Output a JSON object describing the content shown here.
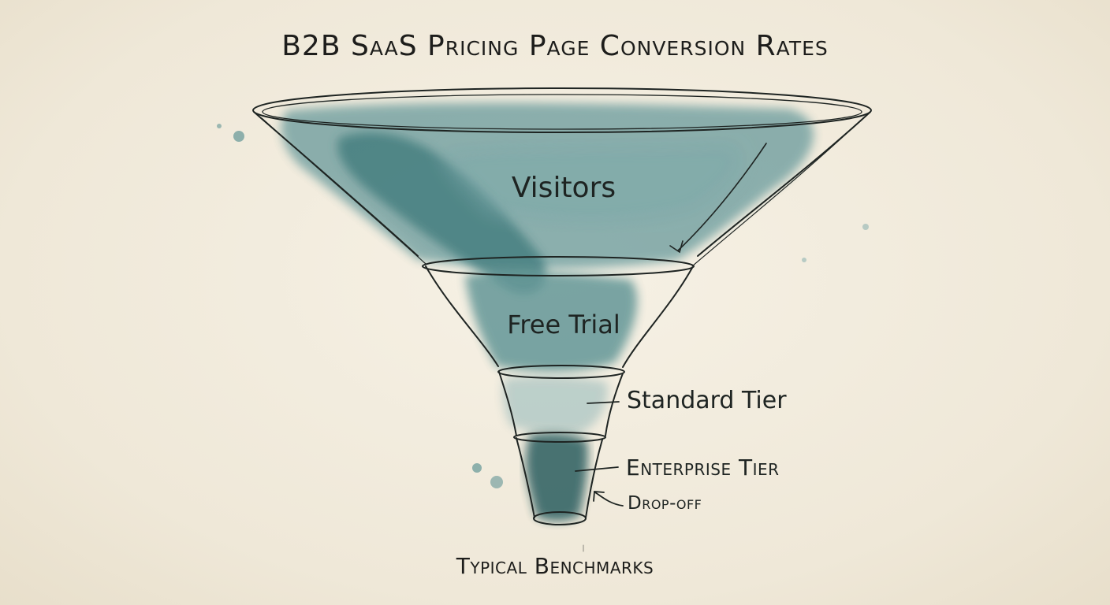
{
  "title": "B2B SaaS Pricing Page Conversion Rates",
  "stages": [
    {
      "id": "visitors",
      "label": "Visitors"
    },
    {
      "id": "free-trial",
      "label": "Free Trial"
    },
    {
      "id": "standard-tier",
      "label": "Standard Tier"
    },
    {
      "id": "enterprise-tier",
      "label": "Enterprise Tier"
    }
  ],
  "annotation": {
    "label": "Drop-off"
  },
  "footer": "Typical Benchmarks",
  "colors": {
    "ink": "#1e2422",
    "watercolor": "#2f6f73",
    "watercolor_dark": "#1f5256",
    "paper": "#f1ebdd"
  }
}
